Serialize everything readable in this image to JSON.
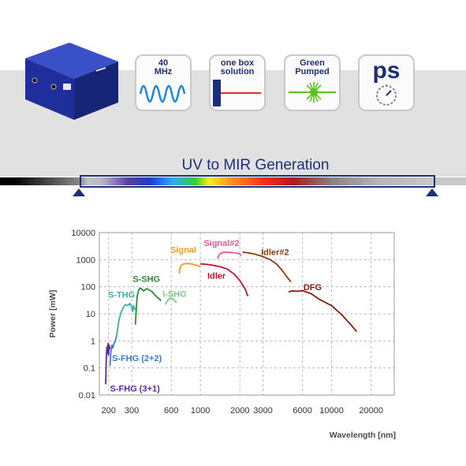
{
  "features": [
    {
      "label": "40\nMHz",
      "icon": "sine-wave-icon"
    },
    {
      "label": "one box\nsolution",
      "icon": "laser-box-icon"
    },
    {
      "label": "Green\nPumped",
      "icon": "green-laser-burst-icon"
    },
    {
      "label": "ps",
      "icon": "stopwatch-icon"
    }
  ],
  "generation_title": "UV to MIR Generation",
  "colors": {
    "brand": "#1e2f7a",
    "band": "#e1e1e1"
  },
  "chart_data": {
    "type": "line",
    "xlabel": "Wavelength [nm]",
    "ylabel": "Power [mW]",
    "xscale": "log",
    "yscale": "log",
    "xlim": [
      170,
      30000
    ],
    "ylim": [
      0.01,
      10000
    ],
    "xticks": [
      200,
      300,
      600,
      1000,
      2000,
      3000,
      6000,
      10000,
      20000
    ],
    "yticks": [
      0.01,
      0.1,
      1,
      10,
      100,
      1000,
      10000
    ],
    "xtick_labels": [
      "200",
      "300",
      "600",
      "1000",
      "2000",
      "3000",
      "6000",
      "10000",
      "20000"
    ],
    "ytick_labels": [
      "0.01",
      "0.1",
      "1",
      "10",
      "100",
      "1000",
      "10000"
    ],
    "grid": true,
    "series": [
      {
        "name": "S-FHG (3+1)",
        "color": "#5b2d91",
        "labelXY": [
          205,
          0.0135
        ],
        "points": [
          [
            190,
            0.025
          ],
          [
            192,
            0.2
          ],
          [
            194,
            0.6
          ],
          [
            196,
            0.35
          ],
          [
            198,
            0.8
          ],
          [
            200,
            0.3
          ],
          [
            202,
            0.7
          ],
          [
            205,
            0.5
          ]
        ]
      },
      {
        "name": "S-FHG (2+2)",
        "color": "#3d7cc9",
        "labelXY": [
          212,
          0.18
        ],
        "points": [
          [
            205,
            0.12
          ],
          [
            208,
            0.4
          ],
          [
            212,
            0.7
          ],
          [
            215,
            0.55
          ],
          [
            220,
            0.8
          ],
          [
            225,
            1.0
          ],
          [
            230,
            1.6
          ]
        ]
      },
      {
        "name": "S-THG",
        "color": "#3bb0a5",
        "labelXY": [
          198,
          40
        ],
        "points": [
          [
            230,
            1.6
          ],
          [
            235,
            3
          ],
          [
            240,
            6
          ],
          [
            250,
            12
          ],
          [
            260,
            18
          ],
          [
            270,
            22
          ],
          [
            280,
            20
          ],
          [
            290,
            24
          ],
          [
            300,
            18
          ],
          [
            305,
            12
          ],
          [
            310,
            20
          ],
          [
            315,
            16
          ],
          [
            320,
            14
          ]
        ]
      },
      {
        "name": "S-SHG",
        "color": "#2a8a3a",
        "labelXY": [
          305,
          150
        ],
        "points": [
          [
            320,
            4
          ],
          [
            325,
            15
          ],
          [
            330,
            45
          ],
          [
            340,
            80
          ],
          [
            350,
            90
          ],
          [
            370,
            70
          ],
          [
            390,
            85
          ],
          [
            410,
            75
          ],
          [
            430,
            65
          ],
          [
            450,
            50
          ],
          [
            470,
            40
          ],
          [
            490,
            35
          ],
          [
            500,
            30
          ]
        ]
      },
      {
        "name": "I-SHG",
        "color": "#7ec98a",
        "labelXY": [
          515,
          42
        ],
        "points": [
          [
            540,
            22
          ],
          [
            560,
            30
          ],
          [
            580,
            36
          ],
          [
            600,
            38
          ],
          [
            620,
            35
          ],
          [
            640,
            30
          ],
          [
            660,
            26
          ]
        ]
      },
      {
        "name": "Signal",
        "color": "#f39c1f",
        "labelXY": [
          590,
          1800
        ],
        "points": [
          [
            690,
            300
          ],
          [
            700,
            500
          ],
          [
            720,
            650
          ],
          [
            750,
            700
          ],
          [
            800,
            720
          ],
          [
            850,
            700
          ],
          [
            900,
            650
          ],
          [
            950,
            600
          ],
          [
            1000,
            550
          ]
        ]
      },
      {
        "name": "Signal#2",
        "color": "#e85b9a",
        "labelXY": [
          1060,
          3200
        ],
        "points": [
          [
            1350,
            1100
          ],
          [
            1400,
            1600
          ],
          [
            1500,
            1900
          ],
          [
            1600,
            1900
          ],
          [
            1700,
            1850
          ],
          [
            1800,
            1800
          ],
          [
            1900,
            1750
          ],
          [
            2000,
            1600
          ],
          [
            2050,
            1400
          ]
        ]
      },
      {
        "name": "Idler",
        "color": "#c8102e",
        "labelXY": [
          1130,
          200
        ],
        "points": [
          [
            1000,
            700
          ],
          [
            1100,
            680
          ],
          [
            1200,
            640
          ],
          [
            1400,
            560
          ],
          [
            1600,
            450
          ],
          [
            1800,
            300
          ],
          [
            2000,
            170
          ],
          [
            2200,
            80
          ],
          [
            2300,
            45
          ]
        ]
      },
      {
        "name": "Idler#2",
        "color": "#8b3a10",
        "labelXY": [
          2900,
          1500
        ],
        "points": [
          [
            2100,
            1900
          ],
          [
            2300,
            1800
          ],
          [
            2600,
            1600
          ],
          [
            3000,
            1300
          ],
          [
            3400,
            1000
          ],
          [
            3800,
            700
          ],
          [
            4200,
            400
          ],
          [
            4600,
            220
          ],
          [
            4900,
            150
          ]
        ]
      },
      {
        "name": "DFG",
        "color": "#8b1a10",
        "labelXY": [
          6100,
          75
        ],
        "points": [
          [
            4700,
            65
          ],
          [
            5000,
            70
          ],
          [
            5500,
            68
          ],
          [
            6000,
            72
          ],
          [
            7000,
            55
          ],
          [
            8000,
            35
          ],
          [
            10000,
            20
          ],
          [
            12000,
            9
          ],
          [
            14000,
            4
          ],
          [
            15500,
            2.2
          ]
        ]
      }
    ]
  }
}
